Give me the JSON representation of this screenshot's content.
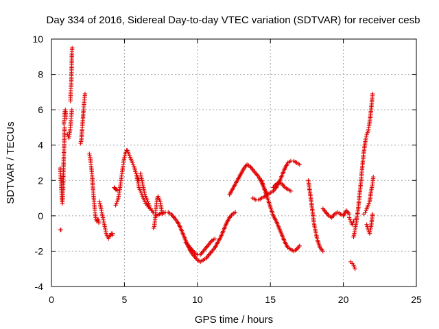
{
  "chart_data": {
    "type": "scatter",
    "title": "Day 334 of 2016, Sidereal Day-to-day VTEC variation (SDTVAR) for receiver cesb",
    "xlabel": "GPS time / hours",
    "ylabel": "SDTVAR / TECUs",
    "xlim": [
      0,
      25
    ],
    "ylim": [
      -4,
      10
    ],
    "xticks": [
      0,
      5,
      10,
      15,
      20,
      25
    ],
    "yticks": [
      -4,
      -2,
      0,
      2,
      4,
      6,
      8,
      10
    ],
    "grid": true,
    "marker": "+",
    "color": "#e00000",
    "series": [
      {
        "name": "s1",
        "x": [
          0.6,
          0.65
        ],
        "y": [
          -0.8,
          -0.8
        ]
      },
      {
        "name": "s2",
        "x": [
          0.6,
          0.62,
          0.65,
          0.68,
          0.7,
          0.72,
          0.75,
          0.78,
          0.8,
          0.82,
          0.85,
          0.88,
          0.9
        ],
        "y": [
          2.7,
          2.4,
          2.0,
          1.6,
          1.2,
          0.8,
          0.7,
          1.1,
          1.5,
          2.5,
          3.4,
          4.4,
          5.0
        ]
      },
      {
        "name": "s3",
        "x": [
          0.85,
          0.88,
          0.9,
          0.92,
          0.95,
          0.98,
          1.0
        ],
        "y": [
          5.2,
          5.5,
          5.7,
          5.9,
          6.0,
          5.8,
          5.5
        ]
      },
      {
        "name": "s4",
        "x": [
          1.1,
          1.15,
          1.2,
          1.25,
          1.3,
          1.35,
          1.4
        ],
        "y": [
          4.6,
          4.5,
          4.4,
          4.7,
          5.0,
          5.5,
          6.0
        ]
      },
      {
        "name": "s5",
        "x": [
          1.3,
          1.32,
          1.35,
          1.38,
          1.4,
          1.42
        ],
        "y": [
          6.5,
          7.0,
          7.4,
          8.2,
          9.2,
          9.5
        ]
      },
      {
        "name": "s6",
        "x": [
          2.0,
          2.05,
          2.1,
          2.15,
          2.2,
          2.25,
          2.3
        ],
        "y": [
          4.1,
          4.3,
          4.9,
          5.4,
          6.0,
          6.5,
          6.9
        ]
      },
      {
        "name": "s7",
        "x": [
          2.6,
          2.65,
          2.7,
          2.75,
          2.8,
          2.85,
          2.9,
          2.95,
          3.0,
          3.05,
          3.1,
          3.15,
          3.2,
          3.25
        ],
        "y": [
          3.5,
          3.3,
          3.0,
          2.6,
          2.1,
          1.5,
          1.0,
          0.5,
          0.1,
          -0.2,
          -0.3,
          -0.25,
          -0.2,
          -0.4
        ]
      },
      {
        "name": "s8",
        "x": [
          3.3,
          3.35,
          3.4,
          3.45,
          3.5,
          3.55,
          3.6,
          3.65,
          3.7,
          3.75,
          3.8,
          3.85,
          3.9,
          3.95,
          4.0,
          4.05,
          4.1,
          4.15,
          4.2
        ],
        "y": [
          0.8,
          0.6,
          0.4,
          0.2,
          0.0,
          -0.2,
          -0.4,
          -0.6,
          -0.8,
          -1.0,
          -1.1,
          -1.2,
          -1.3,
          -1.2,
          -1.1,
          -1.1,
          -1.0,
          -1.1,
          -1.0
        ]
      },
      {
        "name": "s9",
        "x": [
          4.3,
          4.35,
          4.4,
          4.45,
          4.5
        ],
        "y": [
          1.6,
          1.55,
          1.5,
          1.5,
          1.45
        ]
      },
      {
        "name": "s10",
        "x": [
          4.4,
          4.45,
          4.5,
          4.55,
          4.6,
          4.65,
          4.7,
          4.75,
          4.8,
          4.85,
          4.9,
          4.95,
          5.0,
          5.05,
          5.1,
          5.15,
          5.2,
          5.25,
          5.3,
          5.35,
          5.4,
          5.45,
          5.5,
          5.55,
          5.6,
          5.65,
          5.7,
          5.75,
          5.8,
          5.85,
          5.9,
          5.95,
          6.0
        ],
        "y": [
          0.6,
          0.7,
          0.8,
          0.9,
          1.1,
          1.3,
          1.6,
          1.9,
          2.2,
          2.5,
          2.8,
          3.1,
          3.3,
          3.5,
          3.6,
          3.7,
          3.7,
          3.6,
          3.5,
          3.4,
          3.3,
          3.2,
          3.1,
          3.0,
          2.9,
          2.8,
          2.7,
          2.5,
          2.4,
          2.3,
          2.2,
          2.1,
          2.0
        ]
      },
      {
        "name": "s11",
        "x": [
          5.8,
          5.85,
          5.9,
          5.95,
          6.0,
          6.05,
          6.1,
          6.15,
          6.2,
          6.25,
          6.3,
          6.35,
          6.4,
          6.45,
          6.5,
          6.55,
          6.6,
          6.65,
          6.7,
          6.75,
          6.8,
          6.85,
          6.9,
          6.95,
          7.0
        ],
        "y": [
          2.4,
          2.2,
          2.0,
          1.8,
          1.6,
          1.5,
          1.4,
          1.3,
          1.2,
          1.1,
          1.0,
          0.9,
          0.8,
          0.7,
          0.7,
          0.6,
          0.6,
          0.5,
          0.5,
          0.4,
          0.4,
          0.3,
          0.3,
          0.2,
          0.2
        ]
      },
      {
        "name": "s12",
        "x": [
          6.1,
          6.15,
          6.2,
          6.25,
          6.3,
          6.35,
          6.4,
          6.45,
          6.5,
          6.55,
          6.6,
          6.65,
          6.7
        ],
        "y": [
          2.4,
          2.2,
          2.0,
          1.8,
          1.6,
          1.4,
          1.2,
          1.1,
          1.0,
          0.9,
          0.8,
          0.7,
          0.6
        ]
      },
      {
        "name": "s13",
        "x": [
          7.0,
          7.05,
          7.1,
          7.15,
          7.2,
          7.25,
          7.3,
          7.35,
          7.4,
          7.45,
          7.5,
          7.55,
          7.6
        ],
        "y": [
          -0.7,
          -0.6,
          -0.2,
          0.3,
          0.7,
          1.0,
          1.1,
          1.0,
          0.9,
          0.8,
          0.6,
          0.3,
          0.1
        ]
      },
      {
        "name": "s14",
        "x": [
          7.2,
          7.4,
          7.6,
          7.8,
          8.0,
          8.2,
          8.4,
          8.6,
          8.8,
          9.0,
          9.2,
          9.4,
          9.6,
          9.8,
          10.0,
          10.2
        ],
        "y": [
          0.0,
          0.1,
          0.15,
          0.2,
          0.2,
          0.1,
          -0.1,
          -0.3,
          -0.6,
          -1.0,
          -1.4,
          -1.8,
          -2.1,
          -2.3,
          -2.5,
          -2.6
        ]
      },
      {
        "name": "s15",
        "x": [
          9.2,
          9.4,
          9.6,
          9.8,
          10.0,
          10.2,
          10.4,
          10.6,
          10.8,
          11.0,
          11.2
        ],
        "y": [
          -1.5,
          -1.7,
          -1.9,
          -2.1,
          -2.2,
          -2.2,
          -2.0,
          -1.8,
          -1.6,
          -1.4,
          -1.3
        ]
      },
      {
        "name": "s16",
        "x": [
          10.2,
          10.4,
          10.6,
          10.8,
          11.0,
          11.2,
          11.4,
          11.6,
          11.8,
          12.0,
          12.2,
          12.4,
          12.6
        ],
        "y": [
          -2.6,
          -2.5,
          -2.4,
          -2.2,
          -2.0,
          -1.8,
          -1.5,
          -1.2,
          -0.8,
          -0.4,
          -0.1,
          0.1,
          0.2
        ]
      },
      {
        "name": "s17",
        "x": [
          12.2,
          12.4,
          12.6,
          12.8,
          13.0,
          13.2,
          13.4,
          13.6,
          13.8,
          14.0,
          14.2,
          14.4,
          14.6,
          14.8
        ],
        "y": [
          1.2,
          1.5,
          1.8,
          2.1,
          2.4,
          2.7,
          2.9,
          2.8,
          2.6,
          2.4,
          2.2,
          1.9,
          1.5,
          1.2
        ]
      },
      {
        "name": "s18",
        "x": [
          14.4,
          14.6,
          14.8,
          15.0,
          15.2,
          15.4,
          15.6,
          15.8,
          16.0,
          16.2,
          16.4,
          16.6,
          16.8,
          17.0
        ],
        "y": [
          2.0,
          1.5,
          1.0,
          0.5,
          0.0,
          -0.3,
          -0.7,
          -1.1,
          -1.5,
          -1.8,
          -1.9,
          -2.0,
          -1.9,
          -1.7
        ]
      },
      {
        "name": "s19",
        "x": [
          13.8,
          14.0,
          14.2,
          14.4,
          14.6,
          14.8,
          15.0,
          15.2,
          15.4,
          15.6,
          15.8,
          16.0,
          16.2,
          16.4,
          16.6,
          16.8,
          17.0
        ],
        "y": [
          1.0,
          0.9,
          0.9,
          1.0,
          1.1,
          1.2,
          1.3,
          1.4,
          1.6,
          1.9,
          2.3,
          2.7,
          3.0,
          3.1,
          3.1,
          3.0,
          2.9
        ]
      },
      {
        "name": "s20",
        "x": [
          15.2,
          15.4,
          15.6,
          15.8,
          16.0,
          16.2,
          16.4
        ],
        "y": [
          1.6,
          1.8,
          1.9,
          1.8,
          1.6,
          1.5,
          1.4
        ]
      },
      {
        "name": "s21",
        "x": [
          17.6,
          17.8,
          18.0,
          18.2,
          18.4,
          18.6
        ],
        "y": [
          2.0,
          0.8,
          -0.5,
          -1.3,
          -1.8,
          -2.0
        ]
      },
      {
        "name": "s22",
        "x": [
          18.6,
          18.8,
          19.0,
          19.2,
          19.4,
          19.6,
          19.8,
          20.0,
          20.2,
          20.4
        ],
        "y": [
          0.4,
          0.2,
          0.0,
          -0.1,
          0.1,
          0.2,
          0.1,
          0.0,
          0.3,
          0.1
        ]
      },
      {
        "name": "s23",
        "x": [
          20.4,
          20.5,
          20.6,
          20.7,
          20.8
        ],
        "y": [
          -0.1,
          -0.3,
          -0.5,
          -0.3,
          -0.2
        ]
      },
      {
        "name": "s24",
        "x": [
          20.5,
          20.6,
          20.7,
          20.8
        ],
        "y": [
          -2.6,
          -2.7,
          -2.8,
          -3.0
        ]
      },
      {
        "name": "s25",
        "x": [
          20.7,
          20.8,
          20.9,
          21.0,
          21.1,
          21.2,
          21.3,
          21.4,
          21.5,
          21.6,
          21.7,
          21.8,
          21.9,
          22.0
        ],
        "y": [
          -1.2,
          -0.8,
          -0.3,
          0.3,
          1.1,
          1.9,
          2.8,
          3.6,
          4.2,
          4.6,
          4.8,
          5.3,
          6.0,
          6.9
        ]
      },
      {
        "name": "s26",
        "x": [
          21.4,
          21.5,
          21.6,
          21.7,
          21.8,
          21.9,
          22.0,
          22.05
        ],
        "y": [
          0.1,
          0.2,
          0.4,
          0.6,
          0.8,
          1.4,
          1.8,
          2.2
        ]
      },
      {
        "name": "s27",
        "x": [
          21.6,
          21.7,
          21.8,
          21.9,
          22.0
        ],
        "y": [
          -0.5,
          -0.8,
          -1.0,
          -0.6,
          0.1
        ]
      }
    ]
  }
}
